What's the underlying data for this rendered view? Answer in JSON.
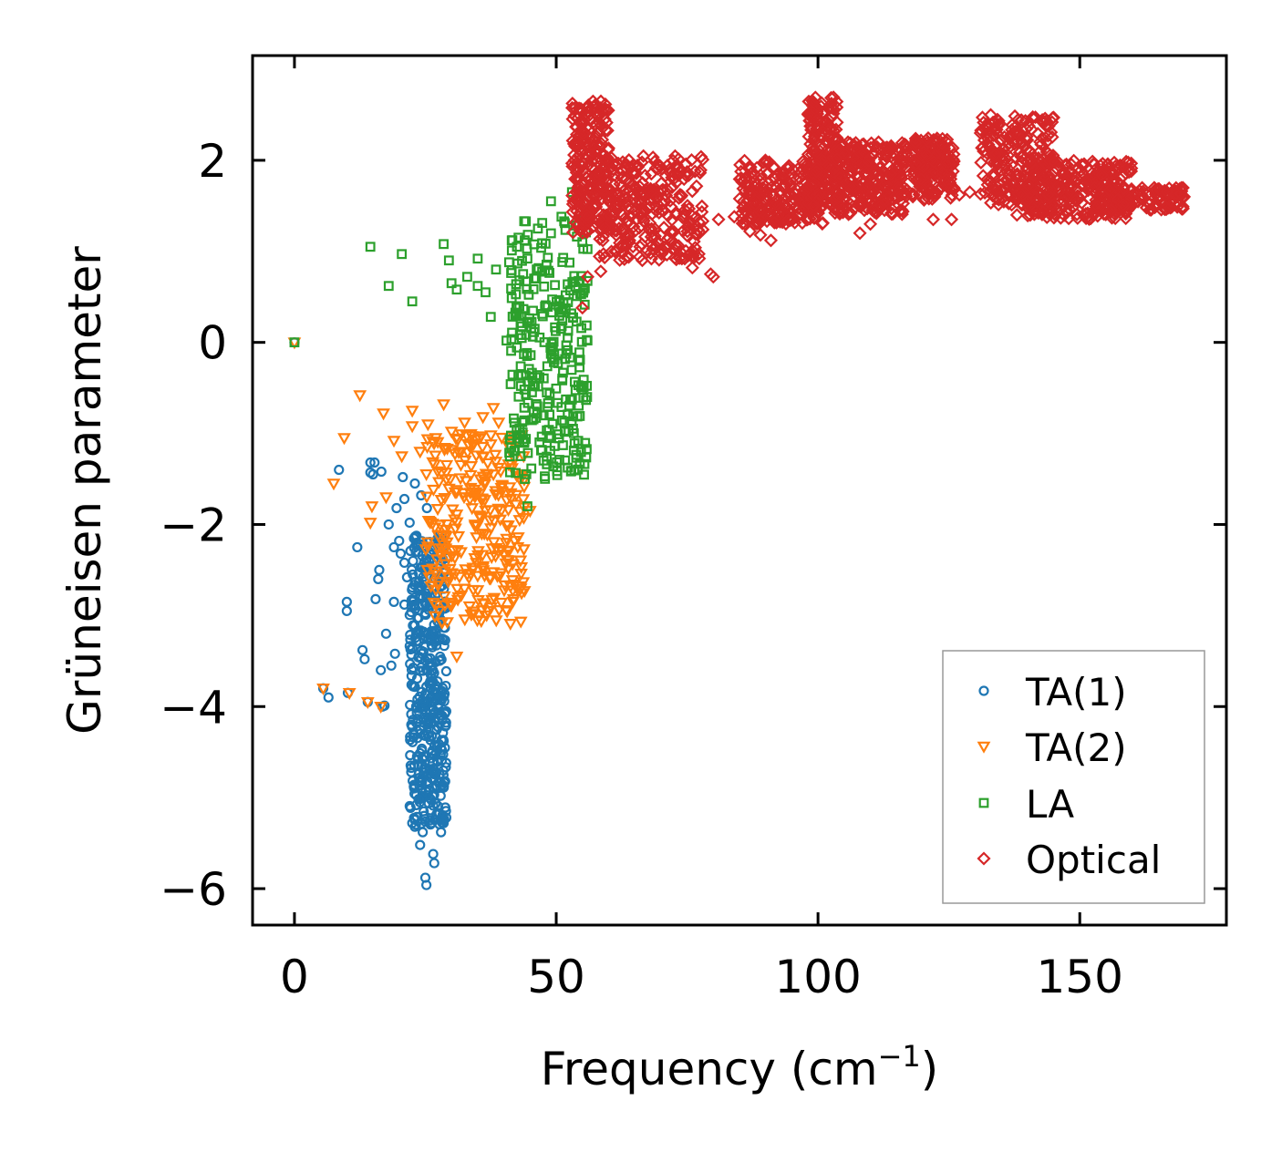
{
  "chart_data": {
    "type": "scatter",
    "title": "",
    "xlabel": "Frequency (cm",
    "xlabel_sup": "−1",
    "xlabel_close": ")",
    "ylabel": "Grüneisen parameter",
    "xlim": [
      -8,
      178
    ],
    "ylim": [
      -6.4,
      3.15
    ],
    "xticks": [
      0,
      50,
      100,
      150
    ],
    "xtick_labels": [
      "0",
      "50",
      "100",
      "150"
    ],
    "yticks": [
      -6,
      -4,
      -2,
      0,
      2
    ],
    "ytick_labels": [
      "−6",
      "−4",
      "−2",
      "0",
      "2"
    ],
    "legend_position": "lower-right",
    "series": [
      {
        "name": "TA(1)",
        "marker": "circle",
        "color": "#1f77b4",
        "points": [
          [
            0,
            0
          ],
          [
            5.5,
            -3.8
          ],
          [
            6.5,
            -3.9
          ],
          [
            8.5,
            -1.4
          ],
          [
            10,
            -2.85
          ],
          [
            10,
            -2.95
          ],
          [
            10.2,
            -3.85
          ],
          [
            12,
            -2.25
          ],
          [
            13,
            -3.38
          ],
          [
            13.4,
            -3.48
          ],
          [
            14,
            -3.95
          ],
          [
            14.5,
            -1.32
          ],
          [
            14.5,
            -1.43
          ],
          [
            15,
            -1.45
          ],
          [
            15.3,
            -1.32
          ],
          [
            15.5,
            -2.82
          ],
          [
            16,
            -2.6
          ],
          [
            16.2,
            -2.5
          ],
          [
            16.5,
            -3.6
          ],
          [
            16.6,
            -1.42
          ],
          [
            16.8,
            -4.0
          ],
          [
            17.2,
            -3.99
          ],
          [
            17.5,
            -3.2
          ],
          [
            18,
            -2.0
          ],
          [
            18.5,
            -3.55
          ],
          [
            19,
            -2.25
          ],
          [
            19,
            -2.85
          ],
          [
            19.2,
            -3.42
          ],
          [
            19.5,
            -1.82
          ],
          [
            20,
            -2.18
          ],
          [
            20.3,
            -2.32
          ],
          [
            20.7,
            -1.48
          ],
          [
            21,
            -1.72
          ],
          [
            21,
            -2.42
          ],
          [
            21,
            -2.88
          ],
          [
            21.5,
            -2.58
          ],
          [
            22,
            -1.98
          ],
          [
            22.3,
            -4.72
          ],
          [
            22.5,
            -5.28
          ],
          [
            22.6,
            -2.55
          ],
          [
            22.8,
            -4.88
          ],
          [
            23,
            -1.55
          ],
          [
            23,
            -5.32
          ],
          [
            23.3,
            -4.18
          ],
          [
            23.5,
            -3.92
          ],
          [
            23.8,
            -5.02
          ],
          [
            24,
            -5.52
          ],
          [
            24.2,
            -1.68
          ],
          [
            24.5,
            -5.38
          ],
          [
            25,
            -5.88
          ],
          [
            25.2,
            -5.96
          ],
          [
            25.3,
            -1.82
          ],
          [
            25.5,
            -2.5
          ],
          [
            26,
            -4.12
          ],
          [
            26.5,
            -5.62
          ],
          [
            26.7,
            -5.72
          ],
          [
            27,
            -3.85
          ],
          [
            28,
            -5.38
          ],
          [
            28.5,
            -5.28
          ],
          [
            29,
            -5.22
          ]
        ],
        "dense_clusters": [
          {
            "xmin": 22,
            "xmax": 29,
            "ymin": -5.3,
            "ymax": -2.1,
            "count": 420
          }
        ]
      },
      {
        "name": "TA(2)",
        "marker": "triangle-down",
        "color": "#ff7f0e",
        "points": [
          [
            0,
            0
          ],
          [
            5.5,
            -3.8
          ],
          [
            7.5,
            -1.55
          ],
          [
            9.5,
            -1.05
          ],
          [
            10.5,
            -3.85
          ],
          [
            12.5,
            -0.58
          ],
          [
            14,
            -3.95
          ],
          [
            14.5,
            -1.98
          ],
          [
            14.8,
            -1.8
          ],
          [
            16.5,
            -4.0
          ],
          [
            17,
            -0.78
          ],
          [
            17.5,
            -1.7
          ],
          [
            19,
            -1.08
          ],
          [
            20.5,
            -1.25
          ],
          [
            22.5,
            -0.75
          ],
          [
            22.5,
            -0.92
          ],
          [
            24,
            -1.2
          ],
          [
            25.5,
            -0.9
          ],
          [
            27,
            -1.05
          ],
          [
            28.5,
            -0.68
          ],
          [
            30,
            -0.98
          ],
          [
            31,
            -3.45
          ],
          [
            32.5,
            -0.88
          ],
          [
            34,
            -1.12
          ],
          [
            36,
            -0.82
          ],
          [
            38,
            -0.72
          ],
          [
            39,
            -0.88
          ],
          [
            43,
            -1.95
          ],
          [
            45,
            -1.85
          ],
          [
            38,
            -1.45
          ]
        ],
        "dense_clusters": [
          {
            "xmin": 25,
            "xmax": 44,
            "ymin": -3.1,
            "ymax": -1.0,
            "count": 300
          }
        ]
      },
      {
        "name": "LA",
        "marker": "square",
        "color": "#2ca02c",
        "points": [
          [
            0,
            0
          ],
          [
            14.5,
            1.05
          ],
          [
            20.5,
            0.97
          ],
          [
            18,
            0.62
          ],
          [
            22.5,
            0.45
          ],
          [
            28.5,
            1.08
          ],
          [
            29.5,
            0.9
          ],
          [
            30,
            0.65
          ],
          [
            31,
            0.58
          ],
          [
            33,
            0.72
          ],
          [
            35,
            0.92
          ],
          [
            35,
            0.62
          ],
          [
            36.5,
            0.55
          ],
          [
            37.5,
            0.28
          ],
          [
            38.5,
            0.8
          ],
          [
            40.5,
            0.02
          ],
          [
            41,
            0.88
          ],
          [
            41.5,
            1.12
          ],
          [
            42.5,
            1.05
          ],
          [
            44.5,
            0.92
          ],
          [
            46.5,
            1.25
          ],
          [
            49,
            1.55
          ],
          [
            51,
            1.38
          ],
          [
            53,
            1.65
          ],
          [
            55,
            1.35
          ],
          [
            44,
            -1.5
          ],
          [
            43.2,
            -1.25
          ],
          [
            44.5,
            -1.8
          ]
        ],
        "dense_clusters": [
          {
            "xmin": 41,
            "xmax": 56,
            "ymin": -1.5,
            "ymax": 1.35,
            "count": 300
          }
        ]
      },
      {
        "name": "Optical",
        "marker": "diamond",
        "color": "#d62728",
        "points": [
          [
            56,
            0.72
          ],
          [
            58.5,
            0.78
          ],
          [
            55,
            0.38
          ],
          [
            60,
            1.55
          ],
          [
            62,
            1.32
          ],
          [
            64,
            1.12
          ],
          [
            66,
            1.05
          ],
          [
            68,
            0.98
          ],
          [
            72,
            1.1
          ],
          [
            74,
            0.92
          ],
          [
            76,
            0.82
          ],
          [
            79.5,
            0.75
          ],
          [
            80,
            0.72
          ],
          [
            81,
            1.35
          ],
          [
            84,
            1.38
          ],
          [
            86,
            1.3
          ],
          [
            87,
            1.22
          ],
          [
            89,
            1.18
          ],
          [
            91,
            1.12
          ],
          [
            98,
            1.35
          ],
          [
            104,
            1.6
          ],
          [
            108,
            1.2
          ],
          [
            110,
            1.3
          ],
          [
            112,
            1.5
          ],
          [
            114,
            1.42
          ],
          [
            116,
            1.62
          ],
          [
            122,
            1.35
          ],
          [
            125.5,
            1.35
          ],
          [
            127,
            1.62
          ],
          [
            129,
            1.65
          ],
          [
            138,
            1.4
          ],
          [
            140,
            1.55
          ],
          [
            144,
            1.62
          ],
          [
            146,
            1.65
          ]
        ],
        "dense_clusters": [
          {
            "xmin": 53,
            "xmax": 60,
            "ymin": 1.2,
            "ymax": 2.65,
            "count": 220
          },
          {
            "xmin": 58,
            "xmax": 78,
            "ymin": 0.9,
            "ymax": 2.05,
            "count": 300
          },
          {
            "xmin": 85,
            "xmax": 101,
            "ymin": 1.3,
            "ymax": 2.0,
            "count": 260
          },
          {
            "xmin": 98,
            "xmax": 104,
            "ymin": 1.5,
            "ymax": 2.7,
            "count": 160
          },
          {
            "xmin": 103,
            "xmax": 117,
            "ymin": 1.4,
            "ymax": 2.2,
            "count": 300
          },
          {
            "xmin": 118,
            "xmax": 126,
            "ymin": 1.55,
            "ymax": 2.25,
            "count": 180
          },
          {
            "xmin": 131,
            "xmax": 145,
            "ymin": 1.5,
            "ymax": 2.5,
            "count": 220
          },
          {
            "xmin": 140,
            "xmax": 160,
            "ymin": 1.35,
            "ymax": 2.0,
            "count": 300
          },
          {
            "xmin": 155,
            "xmax": 170,
            "ymin": 1.45,
            "ymax": 1.7,
            "count": 120
          }
        ]
      }
    ]
  }
}
